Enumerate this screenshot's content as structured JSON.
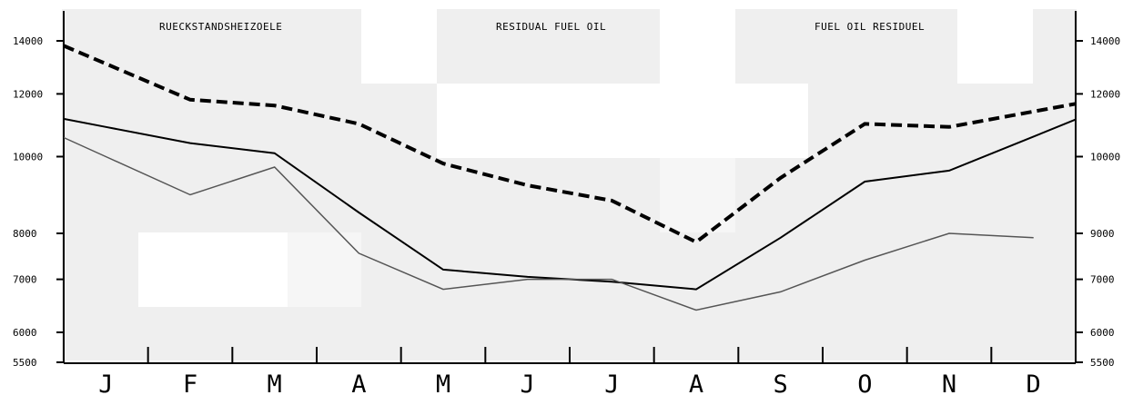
{
  "chart_data": {
    "type": "line",
    "titles": [
      "RUECKSTANDSHEIZOELE",
      "RESIDUAL FUEL OIL",
      "FUEL OIL RESIDUEL"
    ],
    "categories": [
      "J",
      "F",
      "M",
      "A",
      "M",
      "J",
      "J",
      "A",
      "S",
      "O",
      "N",
      "D"
    ],
    "y_ticks": [
      "14000",
      "12000",
      "10000",
      "8000",
      "7000",
      "6000",
      "5500"
    ],
    "y_ticks_right": [
      "14000",
      "12000",
      "10000",
      "9000",
      "7000",
      "6000",
      "5500"
    ],
    "y_scale": "log",
    "ylim": [
      5500,
      15000
    ],
    "series": [
      {
        "style": "dashed-bold",
        "values": [
          13100,
          11800,
          11600,
          11000,
          9800,
          9200,
          8800,
          7800,
          9400,
          11000,
          10900,
          11400
        ]
      },
      {
        "style": "solid",
        "values": [
          10900,
          10400,
          10100,
          8500,
          7200,
          7050,
          6950,
          6800,
          7900,
          9300,
          9600,
          10600
        ]
      },
      {
        "style": "thin",
        "values": [
          10000,
          8950,
          9700,
          7550,
          6800,
          7000,
          7000,
          6400,
          6750,
          7400,
          8000,
          7900
        ]
      }
    ],
    "legend": "none",
    "grid": false
  }
}
